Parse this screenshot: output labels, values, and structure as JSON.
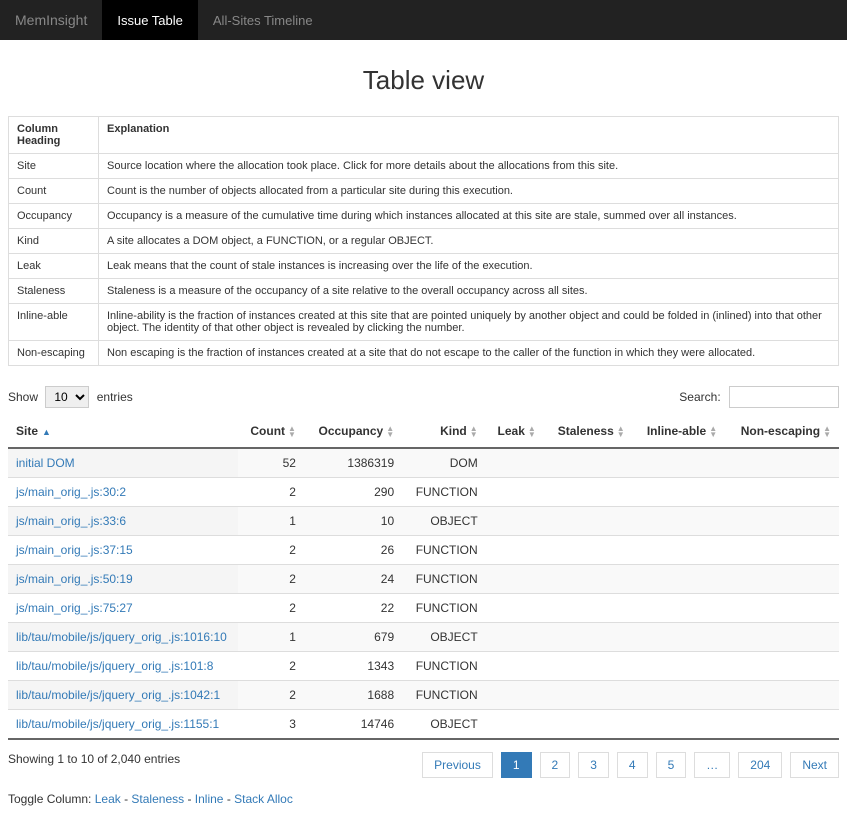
{
  "navbar": {
    "brand": "MemInsight",
    "items": [
      {
        "label": "Issue Table",
        "active": true
      },
      {
        "label": "All-Sites Timeline",
        "active": false
      }
    ]
  },
  "page_title": "Table view",
  "explain": {
    "header_col": "Column Heading",
    "header_exp": "Explanation",
    "rows": [
      {
        "head": "Site",
        "body": "Source location where the allocation took place. Click for more details about the allocations from this site."
      },
      {
        "head": "Count",
        "body": "Count is the number of objects allocated from a particular site during this execution."
      },
      {
        "head": "Occupancy",
        "body": "Occupancy is a measure of the cumulative time during which instances allocated at this site are stale, summed over all instances."
      },
      {
        "head": "Kind",
        "body": "A site allocates a DOM object, a FUNCTION, or a regular OBJECT."
      },
      {
        "head": "Leak",
        "body": "Leak means that the count of stale instances is increasing over the life of the execution."
      },
      {
        "head": "Staleness",
        "body": "Staleness is a measure of the occupancy of a site relative to the overall occupancy across all sites."
      },
      {
        "head": "Inline-able",
        "body": "Inline-ability is the fraction of instances created at this site that are pointed uniquely by another object and could be folded in (inlined) into that other object. The identity of that other object is revealed by clicking the number."
      },
      {
        "head": "Non-escaping",
        "body": "Non escaping is the fraction of instances created at a site that do not escape to the caller of the function in which they were allocated."
      }
    ]
  },
  "length_menu": {
    "prefix": "Show",
    "value": "10",
    "suffix": "entries"
  },
  "search": {
    "label": "Search:"
  },
  "columns": [
    "Site",
    "Count",
    "Occupancy",
    "Kind",
    "Leak",
    "Staleness",
    "Inline-able",
    "Non-escaping"
  ],
  "rows": [
    {
      "site": "initial DOM",
      "count": "52",
      "occupancy": "1386319",
      "kind": "DOM"
    },
    {
      "site": "js/main_orig_.js:30:2",
      "count": "2",
      "occupancy": "290",
      "kind": "FUNCTION"
    },
    {
      "site": "js/main_orig_.js:33:6",
      "count": "1",
      "occupancy": "10",
      "kind": "OBJECT"
    },
    {
      "site": "js/main_orig_.js:37:15",
      "count": "2",
      "occupancy": "26",
      "kind": "FUNCTION"
    },
    {
      "site": "js/main_orig_.js:50:19",
      "count": "2",
      "occupancy": "24",
      "kind": "FUNCTION"
    },
    {
      "site": "js/main_orig_.js:75:27",
      "count": "2",
      "occupancy": "22",
      "kind": "FUNCTION"
    },
    {
      "site": "lib/tau/mobile/js/jquery_orig_.js:1016:10",
      "count": "1",
      "occupancy": "679",
      "kind": "OBJECT"
    },
    {
      "site": "lib/tau/mobile/js/jquery_orig_.js:101:8",
      "count": "2",
      "occupancy": "1343",
      "kind": "FUNCTION"
    },
    {
      "site": "lib/tau/mobile/js/jquery_orig_.js:1042:1",
      "count": "2",
      "occupancy": "1688",
      "kind": "FUNCTION"
    },
    {
      "site": "lib/tau/mobile/js/jquery_orig_.js:1155:1",
      "count": "3",
      "occupancy": "14746",
      "kind": "OBJECT"
    }
  ],
  "info": "Showing 1 to 10 of 2,040 entries",
  "pagination": {
    "prev": "Previous",
    "pages": [
      "1",
      "2",
      "3",
      "4",
      "5",
      "…",
      "204"
    ],
    "active_index": 0,
    "next": "Next"
  },
  "toggle": {
    "label": "Toggle Column:",
    "links": [
      "Leak",
      "Staleness",
      "Inline",
      "Stack Alloc"
    ]
  }
}
